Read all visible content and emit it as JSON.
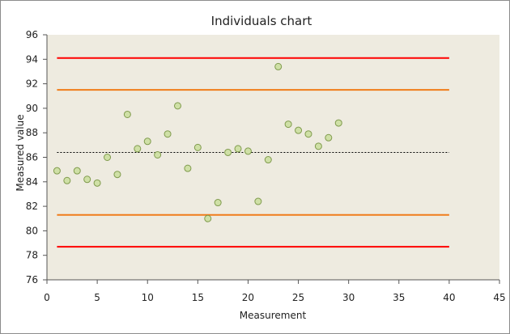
{
  "chart_data": {
    "type": "scatter",
    "title": "Individuals chart",
    "xlabel": "Measurement",
    "ylabel": "Measured value",
    "xlim": [
      0,
      45
    ],
    "ylim": [
      76,
      96
    ],
    "x_ticks": [
      0,
      5,
      10,
      15,
      20,
      25,
      30,
      35,
      40,
      45
    ],
    "y_ticks": [
      76,
      78,
      80,
      82,
      84,
      86,
      88,
      90,
      92,
      94,
      96
    ],
    "grid": false,
    "legend": "none",
    "series": [
      {
        "marker": "circle",
        "points": [
          [
            1,
            84.9
          ],
          [
            2,
            84.1
          ],
          [
            3,
            84.9
          ],
          [
            4,
            84.2
          ],
          [
            5,
            83.9
          ],
          [
            6,
            86.0
          ],
          [
            7,
            84.6
          ],
          [
            8,
            89.5
          ],
          [
            9,
            86.7
          ],
          [
            10,
            87.3
          ],
          [
            11,
            86.2
          ],
          [
            12,
            87.9
          ],
          [
            13,
            90.2
          ],
          [
            14,
            85.1
          ],
          [
            15,
            86.8
          ],
          [
            16,
            81.0
          ],
          [
            17,
            82.3
          ],
          [
            18,
            86.4
          ],
          [
            19,
            86.7
          ],
          [
            20,
            86.5
          ],
          [
            21,
            82.4
          ],
          [
            22,
            85.8
          ],
          [
            23,
            93.4
          ],
          [
            24,
            88.7
          ],
          [
            25,
            88.2
          ],
          [
            26,
            87.9
          ],
          [
            27,
            86.9
          ],
          [
            28,
            87.6
          ],
          [
            29,
            88.8
          ]
        ]
      }
    ],
    "reference_lines": [
      {
        "kind": "upper-control-limit",
        "y": 94.1,
        "x_range": [
          1,
          40
        ],
        "color": "#ff0000",
        "style": "solid"
      },
      {
        "kind": "upper-warning-limit",
        "y": 91.5,
        "x_range": [
          1,
          40
        ],
        "color": "#f07c1a",
        "style": "solid"
      },
      {
        "kind": "center-line",
        "y": 86.4,
        "x_range": [
          1,
          40
        ],
        "color": "#000000",
        "style": "dotted"
      },
      {
        "kind": "lower-warning-limit",
        "y": 81.3,
        "x_range": [
          1,
          40
        ],
        "color": "#f07c1a",
        "style": "solid"
      },
      {
        "kind": "lower-control-limit",
        "y": 78.7,
        "x_range": [
          1,
          40
        ],
        "color": "#ff0000",
        "style": "solid"
      }
    ],
    "colors": {
      "plot_background": "#eeebe0",
      "marker_fill": "#cfe0a6",
      "marker_stroke": "#7f9a4c"
    }
  }
}
